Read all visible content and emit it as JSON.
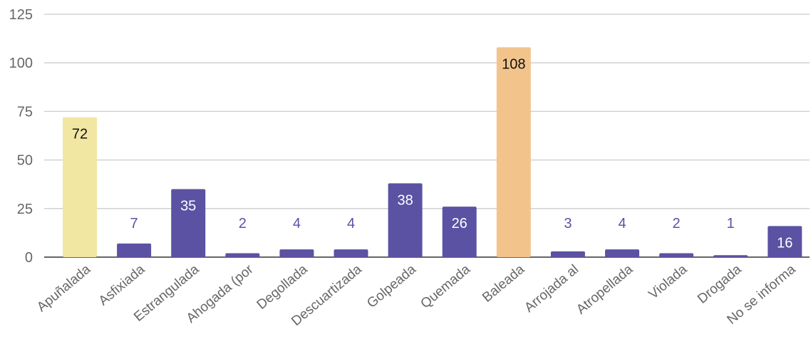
{
  "chart_data": {
    "type": "bar",
    "title": "",
    "xlabel": "",
    "ylabel": "",
    "ylim": [
      0,
      125
    ],
    "yticks": [
      0,
      25,
      50,
      75,
      100,
      125
    ],
    "grid": true,
    "legend": "none",
    "categories": [
      "Apuñalada",
      "Asfixiada",
      "Estrangulada",
      "Ahogada (por",
      "Degollada",
      "Descuartizada",
      "Golpeada",
      "Quemada",
      "Baleada",
      "Arrojada al",
      "Atropellada",
      "Violada",
      "Drogada",
      "No se informa"
    ],
    "values": [
      72,
      7,
      35,
      2,
      4,
      4,
      38,
      26,
      108,
      3,
      4,
      2,
      1,
      16
    ],
    "bar_colors": [
      "#f2e6a3",
      "#5b52a3",
      "#5b52a3",
      "#5b52a3",
      "#5b52a3",
      "#5b52a3",
      "#5b52a3",
      "#5b52a3",
      "#f2c48c",
      "#5b52a3",
      "#5b52a3",
      "#5b52a3",
      "#5b52a3",
      "#5b52a3"
    ],
    "label_color_dark": "#111111",
    "label_color_light": "#ffffff",
    "label_color_outside": "#5b52a3",
    "grid_color": "#cccccc",
    "axis_color": "#333333"
  }
}
